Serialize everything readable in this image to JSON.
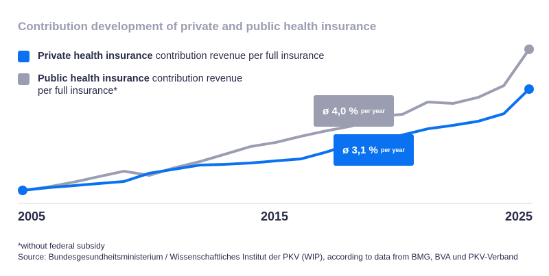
{
  "chart_data": {
    "type": "line",
    "title": "Contribution development of private and public health insurance",
    "x": [
      2005,
      2006,
      2007,
      2008,
      2009,
      2010,
      2011,
      2012,
      2013,
      2014,
      2015,
      2016,
      2017,
      2018,
      2019,
      2020,
      2021,
      2022,
      2023,
      2024,
      2025
    ],
    "x_tick_labels": [
      "2005",
      "2015",
      "2025"
    ],
    "y_axis_shown": false,
    "grid": false,
    "legend_position": "top-left",
    "series": [
      {
        "name_bold": "Private health insurance",
        "name_rest": "contribution revenue per full insurance",
        "color": "#0a72f0",
        "values": [
          100,
          102.3,
          104.0,
          105.8,
          107.5,
          114.5,
          117.9,
          121.4,
          122.0,
          123.1,
          124.9,
          126.6,
          132.4,
          139.3,
          142.2,
          146.8,
          152.0,
          154.9,
          158.4,
          164.7,
          185.5
        ],
        "annotation": {
          "value": "ø 3,1 %",
          "unit": "per year"
        }
      },
      {
        "name_bold": "Public health insurance",
        "name_rest": "contribution revenue",
        "name_line2": "per full insurance*",
        "color": "#9b9eb1",
        "values": [
          100,
          102.9,
          106.9,
          111.6,
          116.2,
          112.7,
          119.1,
          124.3,
          130.6,
          137.0,
          140.5,
          145.7,
          150.3,
          154.3,
          162.4,
          164.2,
          174.6,
          173.4,
          178.6,
          188.4,
          219.1
        ],
        "annotation": {
          "value": "ø 4,0 %",
          "unit": "per year"
        }
      }
    ],
    "footnote": "*without federal subsidy",
    "source": "Source: Bundesgesundheitsministerium / Wissenschaftliches Institut der PKV (WIP), according to data from BMG, BVA und PKV-Verband"
  }
}
